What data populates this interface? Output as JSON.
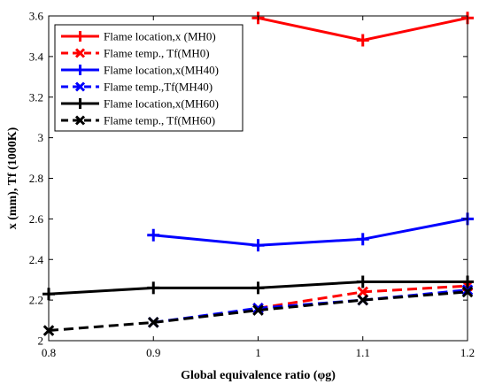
{
  "chart_data": {
    "type": "line",
    "xlabel": "Global equivalence ratio (φg)",
    "ylabel": "x (mm), Tf (1000K)",
    "xlim": [
      0.8,
      1.2
    ],
    "ylim": [
      2.0,
      3.6
    ],
    "xticks": [
      "0.8",
      "0.9",
      "1",
      "1.1",
      "1.2"
    ],
    "yticks": [
      "2",
      "2.2",
      "2.4",
      "2.6",
      "2.8",
      "3",
      "3.2",
      "3.4",
      "3.6"
    ],
    "grid": false,
    "legend_position": "top-left",
    "series": [
      {
        "name": "Flame location,x (MH0)",
        "color": "#ff0000",
        "dash": "solid",
        "marker": "plus",
        "x": [
          1.0,
          1.1,
          1.2
        ],
        "y": [
          3.59,
          3.48,
          3.59
        ]
      },
      {
        "name": "Flame temp., Tf(MH0)",
        "color": "#ff0000",
        "dash": "dashed",
        "marker": "cross",
        "x": [
          1.0,
          1.1,
          1.2
        ],
        "y": [
          2.16,
          2.24,
          2.27
        ]
      },
      {
        "name": "Flame location,x(MH40)",
        "color": "#0000ff",
        "dash": "solid",
        "marker": "plus",
        "x": [
          0.9,
          1.0,
          1.1,
          1.2
        ],
        "y": [
          2.52,
          2.47,
          2.5,
          2.6
        ]
      },
      {
        "name": "Flame temp.,Tf(MH40)",
        "color": "#0000ff",
        "dash": "dashed",
        "marker": "cross",
        "x": [
          0.9,
          1.0,
          1.1,
          1.2
        ],
        "y": [
          2.09,
          2.16,
          2.2,
          2.25
        ]
      },
      {
        "name": "Flame location,x(MH60)",
        "color": "#000000",
        "dash": "solid",
        "marker": "plus",
        "x": [
          0.8,
          0.9,
          1.0,
          1.1,
          1.2
        ],
        "y": [
          2.23,
          2.26,
          2.26,
          2.29,
          2.29
        ]
      },
      {
        "name": "Flame temp., Tf(MH60)",
        "color": "#000000",
        "dash": "dashed",
        "marker": "cross",
        "x": [
          0.8,
          0.9,
          1.0,
          1.1,
          1.2
        ],
        "y": [
          2.05,
          2.09,
          2.15,
          2.2,
          2.24
        ]
      }
    ]
  }
}
